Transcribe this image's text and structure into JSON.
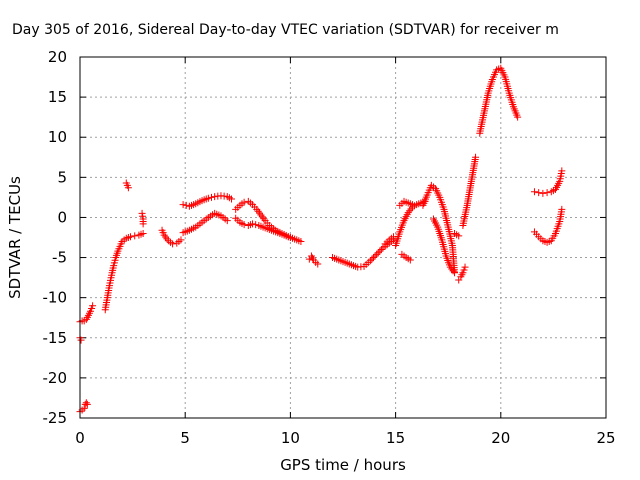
{
  "chart_data": {
    "type": "scatter",
    "title": "Day 305 of 2016, Sidereal Day-to-day VTEC variation (SDTVAR) for receiver m",
    "xlabel": "GPS time / hours",
    "ylabel": "SDTVAR / TECUs",
    "xlim": [
      0,
      25
    ],
    "ylim": [
      -25,
      20
    ],
    "xticks": [
      0,
      5,
      10,
      15,
      20,
      25
    ],
    "yticks": [
      -25,
      -20,
      -15,
      -10,
      -5,
      0,
      5,
      10,
      15,
      20
    ],
    "grid": true,
    "marker": "+",
    "color": "#ff0000",
    "segments": [
      {
        "x": [
          0.0,
          0.05
        ],
        "y": [
          -15.0,
          -15.3
        ]
      },
      {
        "x": [
          0.0,
          0.1,
          0.2
        ],
        "y": [
          -24.2,
          -24.0,
          -23.8
        ]
      },
      {
        "x": [
          0.25,
          0.3,
          0.35
        ],
        "y": [
          -23.3,
          -23.1,
          -23.3
        ]
      },
      {
        "x": [
          0.0,
          0.1,
          0.2,
          0.3,
          0.4,
          0.5,
          0.6
        ],
        "y": [
          -13.0,
          -12.9,
          -12.9,
          -12.7,
          -12.2,
          -11.7,
          -11.0
        ]
      },
      {
        "x": [
          1.2,
          1.3,
          1.4,
          1.5,
          1.6,
          1.7,
          1.8,
          1.9,
          2.0,
          2.1,
          2.2,
          2.3,
          2.4,
          2.6,
          2.8,
          3.0
        ],
        "y": [
          -11.5,
          -10.0,
          -8.5,
          -7.2,
          -6.0,
          -5.0,
          -4.2,
          -3.6,
          -3.0,
          -2.8,
          -2.6,
          -2.5,
          -2.4,
          -2.3,
          -2.2,
          -2.0
        ]
      },
      {
        "x": [
          2.2,
          2.25,
          2.3
        ],
        "y": [
          4.3,
          4.0,
          3.7
        ]
      },
      {
        "x": [
          2.95,
          3.0,
          3.0
        ],
        "y": [
          0.5,
          -0.2,
          -0.8
        ]
      },
      {
        "x": [
          3.9,
          4.0,
          4.2,
          4.4,
          4.6,
          4.8
        ],
        "y": [
          -1.6,
          -2.2,
          -2.9,
          -3.3,
          -3.2,
          -2.8
        ]
      },
      {
        "x": [
          4.9,
          5.2,
          5.5,
          5.8,
          6.1,
          6.4,
          6.7,
          7.0
        ],
        "y": [
          -1.9,
          -1.6,
          -1.2,
          -0.6,
          0.0,
          0.5,
          0.2,
          -0.4
        ]
      },
      {
        "x": [
          4.9,
          5.2,
          5.5,
          5.8,
          6.1,
          6.4,
          6.7,
          7.0,
          7.2
        ],
        "y": [
          1.6,
          1.4,
          1.7,
          2.1,
          2.4,
          2.6,
          2.7,
          2.6,
          2.3
        ]
      },
      {
        "x": [
          7.4,
          7.6,
          7.8,
          8.0,
          8.2,
          8.4,
          8.6,
          8.8,
          9.0,
          9.3,
          9.6,
          9.9,
          10.2,
          10.5
        ],
        "y": [
          1.0,
          1.5,
          1.9,
          2.0,
          1.6,
          1.0,
          0.3,
          -0.4,
          -1.0,
          -1.6,
          -2.0,
          -2.4,
          -2.7,
          -3.0
        ]
      },
      {
        "x": [
          7.4,
          7.6,
          7.8,
          8.0,
          8.2,
          8.5,
          8.8,
          9.1,
          9.4,
          9.7,
          10.0
        ],
        "y": [
          -0.1,
          -0.6,
          -0.9,
          -1.0,
          -0.8,
          -1.0,
          -1.3,
          -1.6,
          -1.9,
          -2.2,
          -2.5
        ]
      },
      {
        "x": [
          10.9,
          11.0,
          11.1,
          11.2,
          11.3
        ],
        "y": [
          -5.2,
          -4.8,
          -5.3,
          -5.6,
          -5.8
        ]
      },
      {
        "x": [
          12.0,
          12.3,
          12.6,
          12.9,
          13.2,
          13.5,
          13.8,
          14.1,
          14.4,
          14.7,
          14.9
        ],
        "y": [
          -5.0,
          -5.3,
          -5.6,
          -5.9,
          -6.2,
          -6.1,
          -5.4,
          -4.6,
          -3.8,
          -3.2,
          -2.8
        ]
      },
      {
        "x": [
          14.5,
          14.7,
          14.9
        ],
        "y": [
          -3.3,
          -2.8,
          -2.4
        ]
      },
      {
        "x": [
          15.0,
          15.2,
          15.4,
          15.6,
          15.8,
          16.0,
          16.2,
          16.4
        ],
        "y": [
          -3.5,
          -1.8,
          -0.4,
          0.6,
          1.3,
          1.6,
          1.8,
          2.0
        ]
      },
      {
        "x": [
          15.3,
          15.5,
          15.7
        ],
        "y": [
          -4.6,
          -5.0,
          -5.3
        ]
      },
      {
        "x": [
          15.2,
          15.4,
          15.6,
          15.8
        ],
        "y": [
          1.5,
          2.0,
          1.8,
          1.6
        ]
      },
      {
        "x": [
          16.3,
          16.5,
          16.7,
          16.9,
          17.1,
          17.3,
          17.5,
          17.7,
          17.8
        ],
        "y": [
          1.5,
          2.8,
          4.0,
          3.6,
          2.5,
          1.0,
          -1.2,
          -3.5,
          -6.8
        ]
      },
      {
        "x": [
          16.8,
          17.0,
          17.2,
          17.4,
          17.6,
          17.8
        ],
        "y": [
          -0.2,
          -1.2,
          -2.8,
          -4.8,
          -6.2,
          -6.9
        ]
      },
      {
        "x": [
          17.8,
          18.0
        ],
        "y": [
          -2.0,
          -2.3
        ]
      },
      {
        "x": [
          18.0,
          18.1,
          18.2,
          18.3
        ],
        "y": [
          -7.8,
          -7.4,
          -6.9,
          -6.2
        ]
      },
      {
        "x": [
          18.2,
          18.4,
          18.6,
          18.8
        ],
        "y": [
          -1.0,
          1.5,
          4.5,
          7.5
        ]
      },
      {
        "x": [
          19.0,
          19.2,
          19.4,
          19.6,
          19.8,
          20.0,
          20.2,
          20.4,
          20.6,
          20.8
        ],
        "y": [
          10.5,
          13.0,
          15.5,
          17.2,
          18.4,
          18.6,
          17.5,
          15.5,
          13.8,
          12.5
        ]
      },
      {
        "x": [
          21.6,
          21.8,
          22.0,
          22.2,
          22.4,
          22.6,
          22.8,
          22.9
        ],
        "y": [
          -1.8,
          -2.4,
          -2.9,
          -3.1,
          -2.9,
          -2.0,
          -0.5,
          1.0
        ]
      },
      {
        "x": [
          21.6,
          21.8,
          22.0,
          22.2,
          22.4,
          22.6,
          22.8,
          22.9
        ],
        "y": [
          3.2,
          3.1,
          3.0,
          3.1,
          3.2,
          3.5,
          4.5,
          5.8
        ]
      }
    ]
  }
}
